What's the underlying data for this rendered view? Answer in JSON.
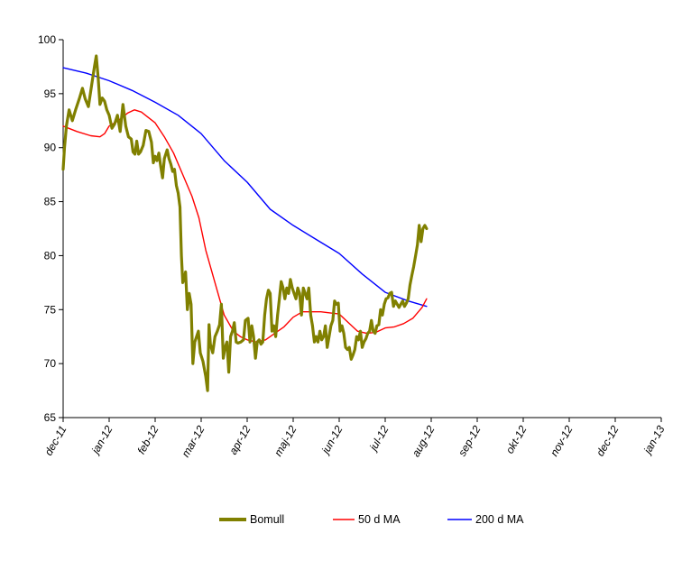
{
  "chart_data": {
    "type": "line",
    "title": "",
    "xlabel": "",
    "ylabel": "",
    "ylim": [
      65,
      100
    ],
    "y_ticks": [
      65,
      70,
      75,
      80,
      85,
      90,
      95,
      100
    ],
    "x_tick_labels": [
      "dec-11",
      "jan-12",
      "feb-12",
      "mar-12",
      "apr-12",
      "maj-12",
      "jun-12",
      "jul-12",
      "aug-12",
      "sep-12",
      "okt-12",
      "nov-12",
      "dec-12",
      "jan-13"
    ],
    "grid": false,
    "legend_position": "bottom",
    "series": [
      {
        "name": "Bomull",
        "color": "#808000",
        "points": [
          [
            0.0,
            88.0
          ],
          [
            0.03,
            90.0
          ],
          [
            0.07,
            92.0
          ],
          [
            0.13,
            93.5
          ],
          [
            0.2,
            92.5
          ],
          [
            0.27,
            93.5
          ],
          [
            0.35,
            94.5
          ],
          [
            0.42,
            95.5
          ],
          [
            0.48,
            94.5
          ],
          [
            0.55,
            93.8
          ],
          [
            0.62,
            95.8
          ],
          [
            0.68,
            97.5
          ],
          [
            0.72,
            98.5
          ],
          [
            0.76,
            96.5
          ],
          [
            0.8,
            94.0
          ],
          [
            0.85,
            94.6
          ],
          [
            0.9,
            94.3
          ],
          [
            0.95,
            93.5
          ],
          [
            1.0,
            93.0
          ],
          [
            1.06,
            91.8
          ],
          [
            1.12,
            92.2
          ],
          [
            1.18,
            93.0
          ],
          [
            1.24,
            91.5
          ],
          [
            1.3,
            94.0
          ],
          [
            1.36,
            92.0
          ],
          [
            1.42,
            91.0
          ],
          [
            1.48,
            90.8
          ],
          [
            1.52,
            89.6
          ],
          [
            1.56,
            89.4
          ],
          [
            1.6,
            90.6
          ],
          [
            1.64,
            89.4
          ],
          [
            1.68,
            89.6
          ],
          [
            1.74,
            90.2
          ],
          [
            1.8,
            91.6
          ],
          [
            1.86,
            91.5
          ],
          [
            1.92,
            90.5
          ],
          [
            1.96,
            88.6
          ],
          [
            2.0,
            89.2
          ],
          [
            2.04,
            88.8
          ],
          [
            2.08,
            89.5
          ],
          [
            2.12,
            88.3
          ],
          [
            2.16,
            87.2
          ],
          [
            2.2,
            89.0
          ],
          [
            2.26,
            89.8
          ],
          [
            2.3,
            89.0
          ],
          [
            2.34,
            88.5
          ],
          [
            2.38,
            87.8
          ],
          [
            2.42,
            88.0
          ],
          [
            2.46,
            86.5
          ],
          [
            2.5,
            85.8
          ],
          [
            2.54,
            84.5
          ],
          [
            2.57,
            80.0
          ],
          [
            2.6,
            77.5
          ],
          [
            2.64,
            78.0
          ],
          [
            2.66,
            78.5
          ],
          [
            2.7,
            75.0
          ],
          [
            2.74,
            76.5
          ],
          [
            2.78,
            75.5
          ],
          [
            2.82,
            70.0
          ],
          [
            2.86,
            72.0
          ],
          [
            2.9,
            72.5
          ],
          [
            2.94,
            73.0
          ],
          [
            2.98,
            71.0
          ],
          [
            3.04,
            70.2
          ],
          [
            3.1,
            68.8
          ],
          [
            3.14,
            67.5
          ],
          [
            3.17,
            73.6
          ],
          [
            3.2,
            71.8
          ],
          [
            3.25,
            71.0
          ],
          [
            3.3,
            72.5
          ],
          [
            3.35,
            73.0
          ],
          [
            3.4,
            73.6
          ],
          [
            3.44,
            75.5
          ],
          [
            3.48,
            70.5
          ],
          [
            3.52,
            71.5
          ],
          [
            3.56,
            72.0
          ],
          [
            3.6,
            69.2
          ],
          [
            3.64,
            72.5
          ],
          [
            3.68,
            73.0
          ],
          [
            3.72,
            73.8
          ],
          [
            3.76,
            72.0
          ],
          [
            3.8,
            71.9
          ],
          [
            3.86,
            72.0
          ],
          [
            3.92,
            72.2
          ],
          [
            3.96,
            74.0
          ],
          [
            4.02,
            74.2
          ],
          [
            4.06,
            72.0
          ],
          [
            4.1,
            73.5
          ],
          [
            4.14,
            72.5
          ],
          [
            4.18,
            70.5
          ],
          [
            4.22,
            72.0
          ],
          [
            4.26,
            72.2
          ],
          [
            4.3,
            71.8
          ],
          [
            4.34,
            72.0
          ],
          [
            4.38,
            74.5
          ],
          [
            4.42,
            76.0
          ],
          [
            4.46,
            76.8
          ],
          [
            4.5,
            76.5
          ],
          [
            4.54,
            73.0
          ],
          [
            4.58,
            73.5
          ],
          [
            4.62,
            72.5
          ],
          [
            4.66,
            74.5
          ],
          [
            4.7,
            76.0
          ],
          [
            4.74,
            77.6
          ],
          [
            4.78,
            77.0
          ],
          [
            4.82,
            76.0
          ],
          [
            4.86,
            77.0
          ],
          [
            4.9,
            76.5
          ],
          [
            4.94,
            77.8
          ],
          [
            4.98,
            77.0
          ],
          [
            5.02,
            76.5
          ],
          [
            5.06,
            76.0
          ],
          [
            5.1,
            77.0
          ],
          [
            5.14,
            76.5
          ],
          [
            5.18,
            74.5
          ],
          [
            5.22,
            77.0
          ],
          [
            5.26,
            76.5
          ],
          [
            5.3,
            76.0
          ],
          [
            5.34,
            77.0
          ],
          [
            5.38,
            74.5
          ],
          [
            5.42,
            73.5
          ],
          [
            5.46,
            72.0
          ],
          [
            5.5,
            72.5
          ],
          [
            5.54,
            72.0
          ],
          [
            5.58,
            73.0
          ],
          [
            5.62,
            72.2
          ],
          [
            5.66,
            72.5
          ],
          [
            5.7,
            73.5
          ],
          [
            5.74,
            71.5
          ],
          [
            5.78,
            72.5
          ],
          [
            5.82,
            73.5
          ],
          [
            5.86,
            74.0
          ],
          [
            5.9,
            75.8
          ],
          [
            5.94,
            75.5
          ],
          [
            5.98,
            75.6
          ],
          [
            6.02,
            73.0
          ],
          [
            6.06,
            73.5
          ],
          [
            6.1,
            72.8
          ],
          [
            6.14,
            71.5
          ],
          [
            6.18,
            71.3
          ],
          [
            6.22,
            71.5
          ],
          [
            6.26,
            70.4
          ],
          [
            6.3,
            70.8
          ],
          [
            6.34,
            71.3
          ],
          [
            6.38,
            72.5
          ],
          [
            6.42,
            72.2
          ],
          [
            6.46,
            73.0
          ],
          [
            6.5,
            71.5
          ],
          [
            6.54,
            72.0
          ],
          [
            6.58,
            72.3
          ],
          [
            6.62,
            72.8
          ],
          [
            6.66,
            73.0
          ],
          [
            6.7,
            74.0
          ],
          [
            6.74,
            73.0
          ],
          [
            6.78,
            72.8
          ],
          [
            6.82,
            73.5
          ],
          [
            6.86,
            73.6
          ],
          [
            6.9,
            75.0
          ],
          [
            6.94,
            74.5
          ],
          [
            6.98,
            75.5
          ],
          [
            7.02,
            76.0
          ],
          [
            7.06,
            76.1
          ],
          [
            7.1,
            76.5
          ],
          [
            7.14,
            76.6
          ],
          [
            7.18,
            75.3
          ],
          [
            7.22,
            75.8
          ],
          [
            7.26,
            75.5
          ],
          [
            7.3,
            75.2
          ],
          [
            7.34,
            75.5
          ],
          [
            7.38,
            75.8
          ],
          [
            7.42,
            75.3
          ],
          [
            7.46,
            75.6
          ],
          [
            7.5,
            76.0
          ],
          [
            7.54,
            77.3
          ],
          [
            7.58,
            78.2
          ],
          [
            7.62,
            79.0
          ],
          [
            7.66,
            80.0
          ],
          [
            7.7,
            81.0
          ],
          [
            7.74,
            82.8
          ],
          [
            7.78,
            81.3
          ],
          [
            7.82,
            82.5
          ],
          [
            7.86,
            82.8
          ],
          [
            7.9,
            82.5
          ]
        ]
      },
      {
        "name": "50 d MA",
        "color": "#ff0000",
        "points": [
          [
            0.0,
            92.0
          ],
          [
            0.3,
            91.5
          ],
          [
            0.6,
            91.1
          ],
          [
            0.8,
            91.0
          ],
          [
            0.9,
            91.3
          ],
          [
            1.0,
            92.0
          ],
          [
            1.2,
            92.5
          ],
          [
            1.4,
            93.2
          ],
          [
            1.55,
            93.5
          ],
          [
            1.7,
            93.3
          ],
          [
            1.85,
            92.8
          ],
          [
            2.0,
            92.3
          ],
          [
            2.2,
            91.0
          ],
          [
            2.4,
            89.5
          ],
          [
            2.6,
            87.5
          ],
          [
            2.8,
            85.5
          ],
          [
            2.95,
            83.5
          ],
          [
            3.1,
            80.5
          ],
          [
            3.3,
            77.5
          ],
          [
            3.5,
            74.5
          ],
          [
            3.7,
            73.0
          ],
          [
            3.85,
            72.5
          ],
          [
            4.0,
            72.2
          ],
          [
            4.2,
            72.0
          ],
          [
            4.4,
            72.2
          ],
          [
            4.6,
            72.8
          ],
          [
            4.8,
            73.4
          ],
          [
            5.0,
            74.3
          ],
          [
            5.2,
            74.8
          ],
          [
            5.4,
            74.8
          ],
          [
            5.6,
            74.8
          ],
          [
            5.8,
            74.7
          ],
          [
            6.0,
            74.6
          ],
          [
            6.2,
            73.8
          ],
          [
            6.4,
            73.0
          ],
          [
            6.6,
            72.8
          ],
          [
            6.8,
            72.9
          ],
          [
            7.0,
            73.3
          ],
          [
            7.2,
            73.4
          ],
          [
            7.4,
            73.7
          ],
          [
            7.6,
            74.2
          ],
          [
            7.8,
            75.2
          ],
          [
            7.9,
            76.0
          ]
        ]
      },
      {
        "name": "200 d MA",
        "color": "#0000ff",
        "points": [
          [
            0.0,
            97.4
          ],
          [
            0.5,
            96.9
          ],
          [
            1.0,
            96.2
          ],
          [
            1.5,
            95.3
          ],
          [
            2.0,
            94.2
          ],
          [
            2.5,
            93.0
          ],
          [
            3.0,
            91.3
          ],
          [
            3.5,
            88.8
          ],
          [
            4.0,
            86.8
          ],
          [
            4.5,
            84.3
          ],
          [
            5.0,
            82.8
          ],
          [
            5.5,
            81.5
          ],
          [
            6.0,
            80.2
          ],
          [
            6.5,
            78.3
          ],
          [
            7.0,
            76.6
          ],
          [
            7.5,
            75.8
          ],
          [
            7.9,
            75.3
          ]
        ]
      }
    ]
  }
}
